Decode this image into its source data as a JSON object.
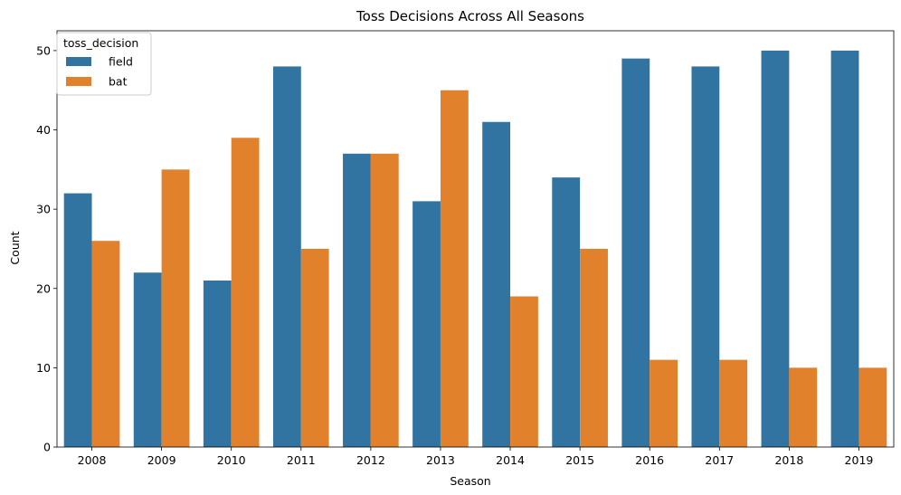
{
  "chart_data": {
    "type": "bar",
    "title": "Toss Decisions Across All Seasons",
    "xlabel": "Season",
    "ylabel": "Count",
    "categories": [
      "2008",
      "2009",
      "2010",
      "2011",
      "2012",
      "2013",
      "2014",
      "2015",
      "2016",
      "2017",
      "2018",
      "2019"
    ],
    "series": [
      {
        "name": "field",
        "color": "#3274a1",
        "values": [
          32,
          22,
          21,
          48,
          37,
          31,
          41,
          34,
          49,
          48,
          50,
          50
        ]
      },
      {
        "name": "bat",
        "color": "#e1812c",
        "values": [
          26,
          35,
          39,
          25,
          37,
          45,
          19,
          25,
          11,
          11,
          10,
          10
        ]
      }
    ],
    "ylim": [
      0,
      52.5
    ],
    "yticks": [
      0,
      10,
      20,
      30,
      40,
      50
    ],
    "grid": false,
    "legend": {
      "title": "toss_decision",
      "placement": "top-left"
    }
  }
}
